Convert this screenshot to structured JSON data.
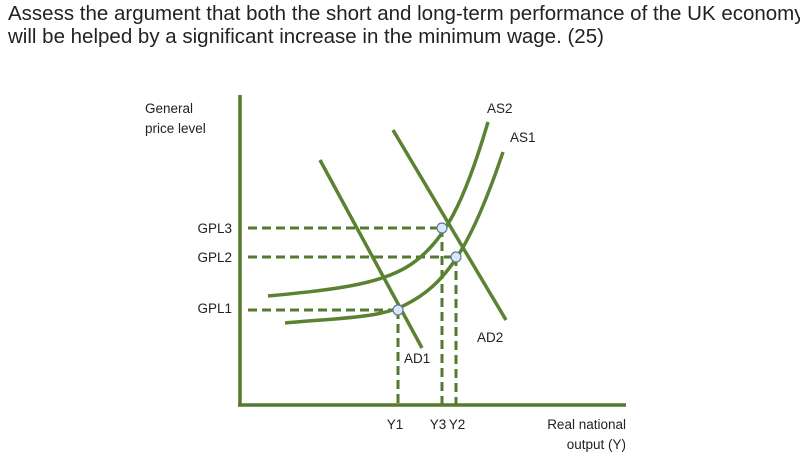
{
  "header": {
    "title_lines": [
      "Assess the argument that both the short and long-term performance of the UK economy",
      "will be helped by a significant increase in the minimum wage. (25)"
    ]
  },
  "diagram": {
    "y_axis_label": [
      "General",
      "price level"
    ],
    "x_axis_label": [
      "Real national",
      "output (Y)"
    ],
    "price_levels": [
      "GPL3",
      "GPL2",
      "GPL1"
    ],
    "outputs": [
      "Y1",
      "Y3",
      "Y2"
    ],
    "curves": [
      "AS2",
      "AS1",
      "AD1",
      "AD2"
    ]
  }
}
